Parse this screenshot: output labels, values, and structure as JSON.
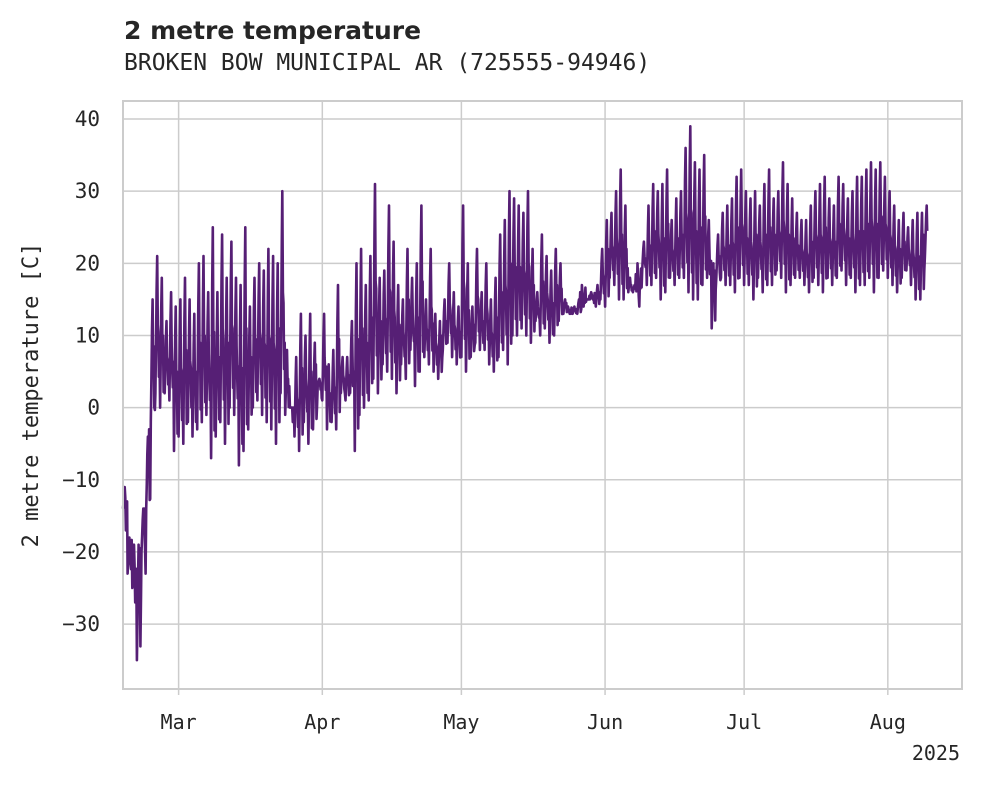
{
  "chart_data": {
    "type": "line",
    "title": "2 metre temperature",
    "subtitle": "BROKEN BOW MUNICIPAL AR (725555-94946)",
    "xlabel": "",
    "ylabel": "2 metre temperature [C]",
    "xlim": [
      "2025-02-17",
      "2025-08-17"
    ],
    "ylim": [
      -39,
      42.5
    ],
    "x_ticks": [
      {
        "label": "Mar",
        "date": "2025-03-01"
      },
      {
        "label": "Apr",
        "date": "2025-04-01"
      },
      {
        "label": "May",
        "date": "2025-05-01"
      },
      {
        "label": "Jun",
        "date": "2025-06-01"
      },
      {
        "label": "Jul",
        "date": "2025-07-01"
      },
      {
        "label": "Aug",
        "date": "2025-08-01"
      }
    ],
    "x_offset_label": "2025",
    "y_ticks": [
      -30,
      -20,
      -10,
      0,
      10,
      20,
      30,
      40
    ],
    "grid": true,
    "line_color": "#561f75",
    "series": [
      {
        "name": "",
        "x": [
          "2025-02-17",
          "2025-02-18",
          "2025-02-19",
          "2025-02-20",
          "2025-02-21",
          "2025-02-22",
          "2025-02-23",
          "2025-02-24",
          "2025-02-25",
          "2025-02-26",
          "2025-02-27",
          "2025-02-28",
          "2025-03-01",
          "2025-03-02",
          "2025-03-03",
          "2025-03-04",
          "2025-03-05",
          "2025-03-06",
          "2025-03-07",
          "2025-03-08",
          "2025-03-09",
          "2025-03-10",
          "2025-03-11",
          "2025-03-12",
          "2025-03-13",
          "2025-03-14",
          "2025-03-15",
          "2025-03-16",
          "2025-03-17",
          "2025-03-18",
          "2025-03-19",
          "2025-03-20",
          "2025-03-21",
          "2025-03-22",
          "2025-03-23",
          "2025-03-24",
          "2025-03-25",
          "2025-03-26",
          "2025-03-27",
          "2025-03-28",
          "2025-03-29",
          "2025-03-30",
          "2025-03-31",
          "2025-04-01",
          "2025-04-02",
          "2025-04-03",
          "2025-04-04",
          "2025-04-05",
          "2025-04-06",
          "2025-04-07",
          "2025-04-08",
          "2025-04-09",
          "2025-04-10",
          "2025-04-11",
          "2025-04-12",
          "2025-04-13",
          "2025-04-14",
          "2025-04-15",
          "2025-04-16",
          "2025-04-17",
          "2025-04-18",
          "2025-04-19",
          "2025-04-20",
          "2025-04-21",
          "2025-04-22",
          "2025-04-23",
          "2025-04-24",
          "2025-04-25",
          "2025-04-26",
          "2025-04-27",
          "2025-04-28",
          "2025-04-29",
          "2025-04-30",
          "2025-05-01",
          "2025-05-02",
          "2025-05-03",
          "2025-05-04",
          "2025-05-05",
          "2025-05-06",
          "2025-05-07",
          "2025-05-08",
          "2025-05-09",
          "2025-05-10",
          "2025-05-11",
          "2025-05-12",
          "2025-05-13",
          "2025-05-14",
          "2025-05-15",
          "2025-05-16",
          "2025-05-17",
          "2025-05-18",
          "2025-05-19",
          "2025-05-20",
          "2025-05-21",
          "2025-05-22",
          "2025-05-23",
          "2025-05-24",
          "2025-05-25",
          "2025-05-26",
          "2025-05-27",
          "2025-05-28",
          "2025-05-29",
          "2025-05-30",
          "2025-05-31",
          "2025-06-01",
          "2025-06-02",
          "2025-06-03",
          "2025-06-04",
          "2025-06-05",
          "2025-06-06",
          "2025-06-07",
          "2025-06-08",
          "2025-06-09",
          "2025-06-10",
          "2025-06-11",
          "2025-06-12",
          "2025-06-13",
          "2025-06-14",
          "2025-06-15",
          "2025-06-16",
          "2025-06-17",
          "2025-06-18",
          "2025-06-19",
          "2025-06-20",
          "2025-06-21",
          "2025-06-22",
          "2025-06-23",
          "2025-06-24",
          "2025-06-25",
          "2025-06-26",
          "2025-06-27",
          "2025-06-28",
          "2025-06-29",
          "2025-06-30",
          "2025-07-01",
          "2025-07-02",
          "2025-07-03",
          "2025-07-04",
          "2025-07-05",
          "2025-07-06",
          "2025-07-07",
          "2025-07-08",
          "2025-07-09",
          "2025-07-10",
          "2025-07-11",
          "2025-07-12",
          "2025-07-13",
          "2025-07-14",
          "2025-07-15",
          "2025-07-16",
          "2025-07-17",
          "2025-07-18",
          "2025-07-19",
          "2025-07-20",
          "2025-07-21",
          "2025-07-22",
          "2025-07-23",
          "2025-07-24",
          "2025-07-25",
          "2025-07-26",
          "2025-07-27",
          "2025-07-28",
          "2025-07-29",
          "2025-07-30",
          "2025-07-31",
          "2025-08-01",
          "2025-08-02",
          "2025-08-03",
          "2025-08-04",
          "2025-08-05",
          "2025-08-06",
          "2025-08-07",
          "2025-08-08",
          "2025-08-09",
          "2025-08-10",
          "2025-08-11",
          "2025-08-12",
          "2025-08-13",
          "2025-08-14",
          "2025-08-15"
        ],
        "min": [
          -14,
          -23,
          -25,
          -35,
          -20,
          -14,
          -2,
          2,
          0,
          2,
          1,
          -6,
          -4,
          -5,
          -2,
          -4,
          -3,
          -2,
          -1,
          -7,
          -4,
          -2,
          -5,
          0,
          -1,
          -8,
          -6,
          -3,
          0,
          1,
          -1,
          -2,
          -3,
          -5,
          2,
          -1,
          0,
          -4,
          -6,
          -2,
          -5,
          -3,
          3,
          1,
          -3,
          -2,
          -3,
          2,
          1,
          2,
          -6,
          -1,
          0,
          1,
          4,
          2,
          6,
          5,
          4,
          2,
          6,
          4,
          8,
          3,
          5,
          7,
          6,
          5,
          4,
          8,
          9,
          7,
          6,
          7,
          5,
          7,
          9,
          8,
          8,
          6,
          5,
          7,
          8,
          6,
          10,
          10,
          11,
          10,
          9,
          12,
          10,
          11,
          9,
          10,
          12,
          13,
          14,
          13,
          13,
          17,
          15,
          16,
          14,
          15,
          14,
          18,
          17,
          15,
          15,
          16,
          16,
          20,
          19,
          17,
          17,
          18,
          15,
          16,
          18,
          17,
          18,
          18,
          16,
          15,
          15,
          17,
          18,
          11,
          18,
          18,
          17,
          17,
          16,
          18,
          17,
          17,
          15,
          18,
          16,
          17,
          17,
          19,
          18,
          16,
          17,
          18,
          18,
          17,
          16,
          18,
          17,
          16,
          18,
          17,
          18,
          19,
          17,
          18,
          16,
          17,
          17,
          18,
          16,
          18,
          19,
          18,
          17,
          16,
          18,
          19,
          17,
          15,
          15,
          21
        ],
        "max": [
          -11,
          -18,
          -19,
          -19,
          -14,
          -4,
          15,
          21,
          18,
          12,
          16,
          14,
          15,
          18,
          15,
          13,
          20,
          21,
          16,
          25,
          16,
          24,
          18,
          23,
          18,
          17,
          25,
          14,
          18,
          20,
          19,
          22,
          21,
          20,
          30,
          8,
          0,
          7,
          13,
          10,
          13,
          9,
          4,
          13,
          6,
          8,
          17,
          7,
          7,
          12,
          20,
          22,
          17,
          21,
          31,
          18,
          19,
          28,
          23,
          17,
          15,
          22,
          18,
          20,
          28,
          15,
          22,
          13,
          12,
          15,
          20,
          16,
          14,
          28,
          20,
          14,
          22,
          16,
          20,
          15,
          18,
          24,
          26,
          30,
          29,
          28,
          27,
          30,
          22,
          16,
          24,
          21,
          19,
          22,
          20,
          15,
          13,
          14,
          15,
          14,
          15,
          15,
          17,
          22,
          26,
          27,
          30,
          33,
          28,
          18,
          17,
          14,
          23,
          28,
          31,
          30,
          31,
          33,
          26,
          29,
          30,
          36,
          39,
          34,
          33,
          35,
          26,
          20,
          24,
          27,
          28,
          29,
          32,
          33,
          30,
          29,
          30,
          28,
          31,
          33,
          29,
          30,
          34,
          31,
          29,
          27,
          26,
          26,
          28,
          30,
          31,
          32,
          29,
          28,
          32,
          31,
          29,
          30,
          32,
          32,
          33,
          34,
          33,
          34,
          32,
          30,
          28,
          26,
          27,
          25,
          26,
          27,
          27,
          28,
          29,
          30,
          32,
          33,
          33
        ]
      }
    ]
  }
}
